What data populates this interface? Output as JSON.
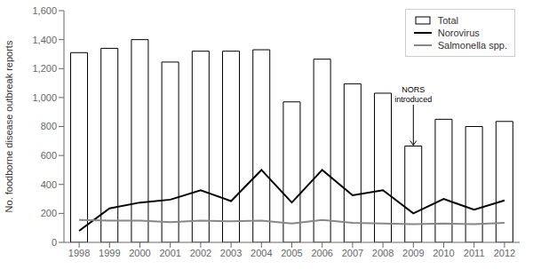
{
  "chart_data": {
    "type": "bar",
    "categories": [
      "1998",
      "1999",
      "2000",
      "2001",
      "2002",
      "2003",
      "2004",
      "2005",
      "2006",
      "2007",
      "2008",
      "2009",
      "2010",
      "2011",
      "2012"
    ],
    "ylabel": "No. foodborne disease outbreak reports",
    "ylim": [
      0,
      1600
    ],
    "yticks": [
      0,
      200,
      400,
      600,
      800,
      {
        "value": 1000,
        "label": "1,000"
      },
      {
        "value": 1200,
        "label": "1,200"
      },
      {
        "value": 1400,
        "label": "1,400"
      },
      {
        "value": 1600,
        "label": "1,600"
      }
    ],
    "series": [
      {
        "name": "Total",
        "type": "bar",
        "color": "#ffffff",
        "values": [
          1310,
          1340,
          1400,
          1245,
          1320,
          1320,
          1330,
          970,
          1265,
          1095,
          1030,
          665,
          850,
          800,
          835
        ]
      },
      {
        "name": "Norovirus",
        "type": "line",
        "color": "#000000",
        "values": [
          80,
          235,
          275,
          295,
          360,
          285,
          500,
          275,
          500,
          325,
          360,
          200,
          300,
          225,
          290
        ]
      },
      {
        "name": "Salmonella spp.",
        "type": "line",
        "color": "#888888",
        "values": [
          155,
          150,
          150,
          140,
          150,
          145,
          150,
          130,
          155,
          135,
          130,
          125,
          130,
          125,
          135
        ]
      }
    ],
    "legend": "upper right",
    "annotations": [
      {
        "text": "NORS\nintroduced",
        "x": "2009",
        "y": 950,
        "arrow_y": 665
      }
    ]
  }
}
